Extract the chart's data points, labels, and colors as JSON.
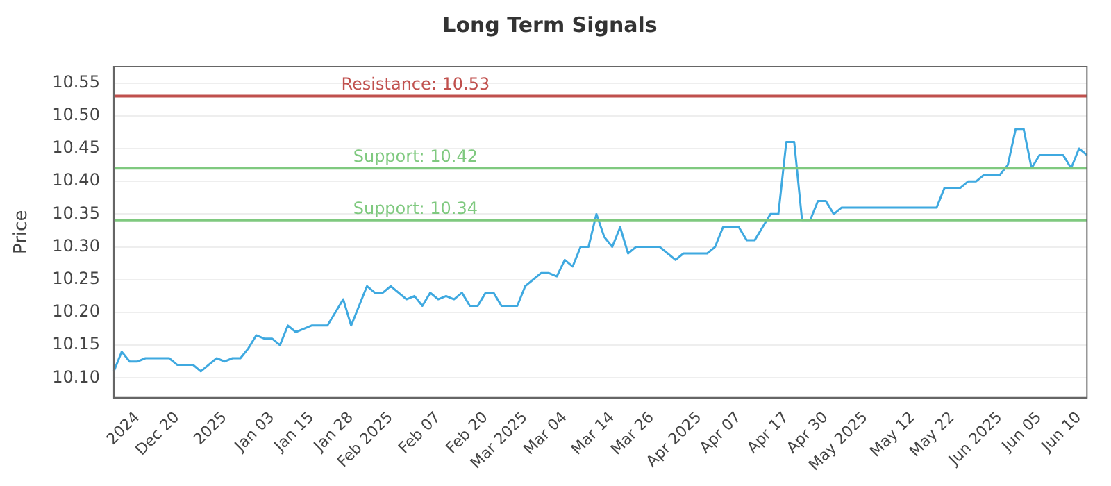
{
  "chart_data": {
    "type": "line",
    "title": "Long Term Signals",
    "ylabel": "Price",
    "categories": [
      null,
      null,
      null,
      "2024",
      null,
      null,
      null,
      null,
      "Dec 20",
      null,
      null,
      null,
      null,
      null,
      "2025",
      null,
      null,
      null,
      null,
      null,
      "Jan 03",
      null,
      null,
      null,
      null,
      "Jan 15",
      null,
      null,
      null,
      null,
      "Jan 28",
      null,
      null,
      null,
      null,
      "Feb 2025",
      null,
      null,
      null,
      null,
      null,
      "Feb 07",
      null,
      null,
      null,
      null,
      null,
      "Feb 20",
      null,
      null,
      null,
      null,
      "Mar 2025",
      null,
      null,
      null,
      null,
      "Mar 04",
      null,
      null,
      null,
      null,
      null,
      "Mar 14",
      null,
      null,
      null,
      null,
      "Mar 26",
      null,
      null,
      null,
      null,
      null,
      "Apr 2025",
      null,
      null,
      null,
      null,
      "Apr 07",
      null,
      null,
      null,
      null,
      null,
      "Apr 17",
      null,
      null,
      null,
      null,
      "Apr 30",
      null,
      null,
      null,
      null,
      "May 2025",
      null,
      null,
      null,
      null,
      null,
      "May 12",
      null,
      null,
      null,
      null,
      "May 22",
      null,
      null,
      null,
      null,
      null,
      "Jun 2025",
      null,
      null,
      null,
      null,
      "Jun 05",
      null,
      null,
      null,
      null,
      "Jun 10",
      null
    ],
    "series": [
      {
        "color": "#3fa9e0",
        "values": [
          10.11,
          10.14,
          10.125,
          10.125,
          10.13,
          10.13,
          10.13,
          10.13,
          10.12,
          10.12,
          10.12,
          10.11,
          10.12,
          10.13,
          10.125,
          10.13,
          10.13,
          10.145,
          10.165,
          10.16,
          10.16,
          10.15,
          10.18,
          10.17,
          10.175,
          10.18,
          10.18,
          10.18,
          10.2,
          10.22,
          10.18,
          10.21,
          10.24,
          10.23,
          10.23,
          10.24,
          10.23,
          10.22,
          10.225,
          10.21,
          10.23,
          10.22,
          10.225,
          10.22,
          10.23,
          10.21,
          10.21,
          10.23,
          10.23,
          10.21,
          10.21,
          10.21,
          10.24,
          10.25,
          10.26,
          10.26,
          10.255,
          10.28,
          10.27,
          10.3,
          10.3,
          10.35,
          10.315,
          10.3,
          10.33,
          10.29,
          10.3,
          10.3,
          10.3,
          10.3,
          10.29,
          10.28,
          10.29,
          10.29,
          10.29,
          10.29,
          10.3,
          10.33,
          10.33,
          10.33,
          10.31,
          10.31,
          10.33,
          10.35,
          10.35,
          10.46,
          10.46,
          10.34,
          10.34,
          10.37,
          10.37,
          10.35,
          10.36,
          10.36,
          10.36,
          10.36,
          10.36,
          10.36,
          10.36,
          10.36,
          10.36,
          10.36,
          10.36,
          10.36,
          10.36,
          10.39,
          10.39,
          10.39,
          10.4,
          10.4,
          10.41,
          10.41,
          10.41,
          10.425,
          10.48,
          10.48,
          10.42,
          10.44,
          10.44,
          10.44,
          10.44,
          10.42,
          10.45,
          10.44
        ]
      }
    ],
    "ylim": [
      10.07,
      10.575
    ],
    "yticks": [
      {
        "value": 10.1,
        "label": "10.10"
      },
      10.15,
      {
        "value": 10.2,
        "label": "10.20"
      },
      10.25,
      {
        "value": 10.3,
        "label": "10.30"
      },
      10.35,
      {
        "value": 10.4,
        "label": "10.40"
      },
      10.45,
      {
        "value": 10.5,
        "label": "10.50"
      },
      10.55
    ],
    "ref_lines": [
      {
        "axis": "y",
        "value": 10.53,
        "label": "Resistance: 10.53",
        "color": "#c0504d"
      },
      {
        "axis": "y",
        "value": 10.42,
        "label": "Support: 10.42",
        "color": "#7fc97f"
      },
      {
        "axis": "y",
        "value": 10.34,
        "label": "Support: 10.34",
        "color": "#7fc97f"
      }
    ],
    "grid": "y",
    "legend": false,
    "marker": "none",
    "line_style": "solid"
  }
}
